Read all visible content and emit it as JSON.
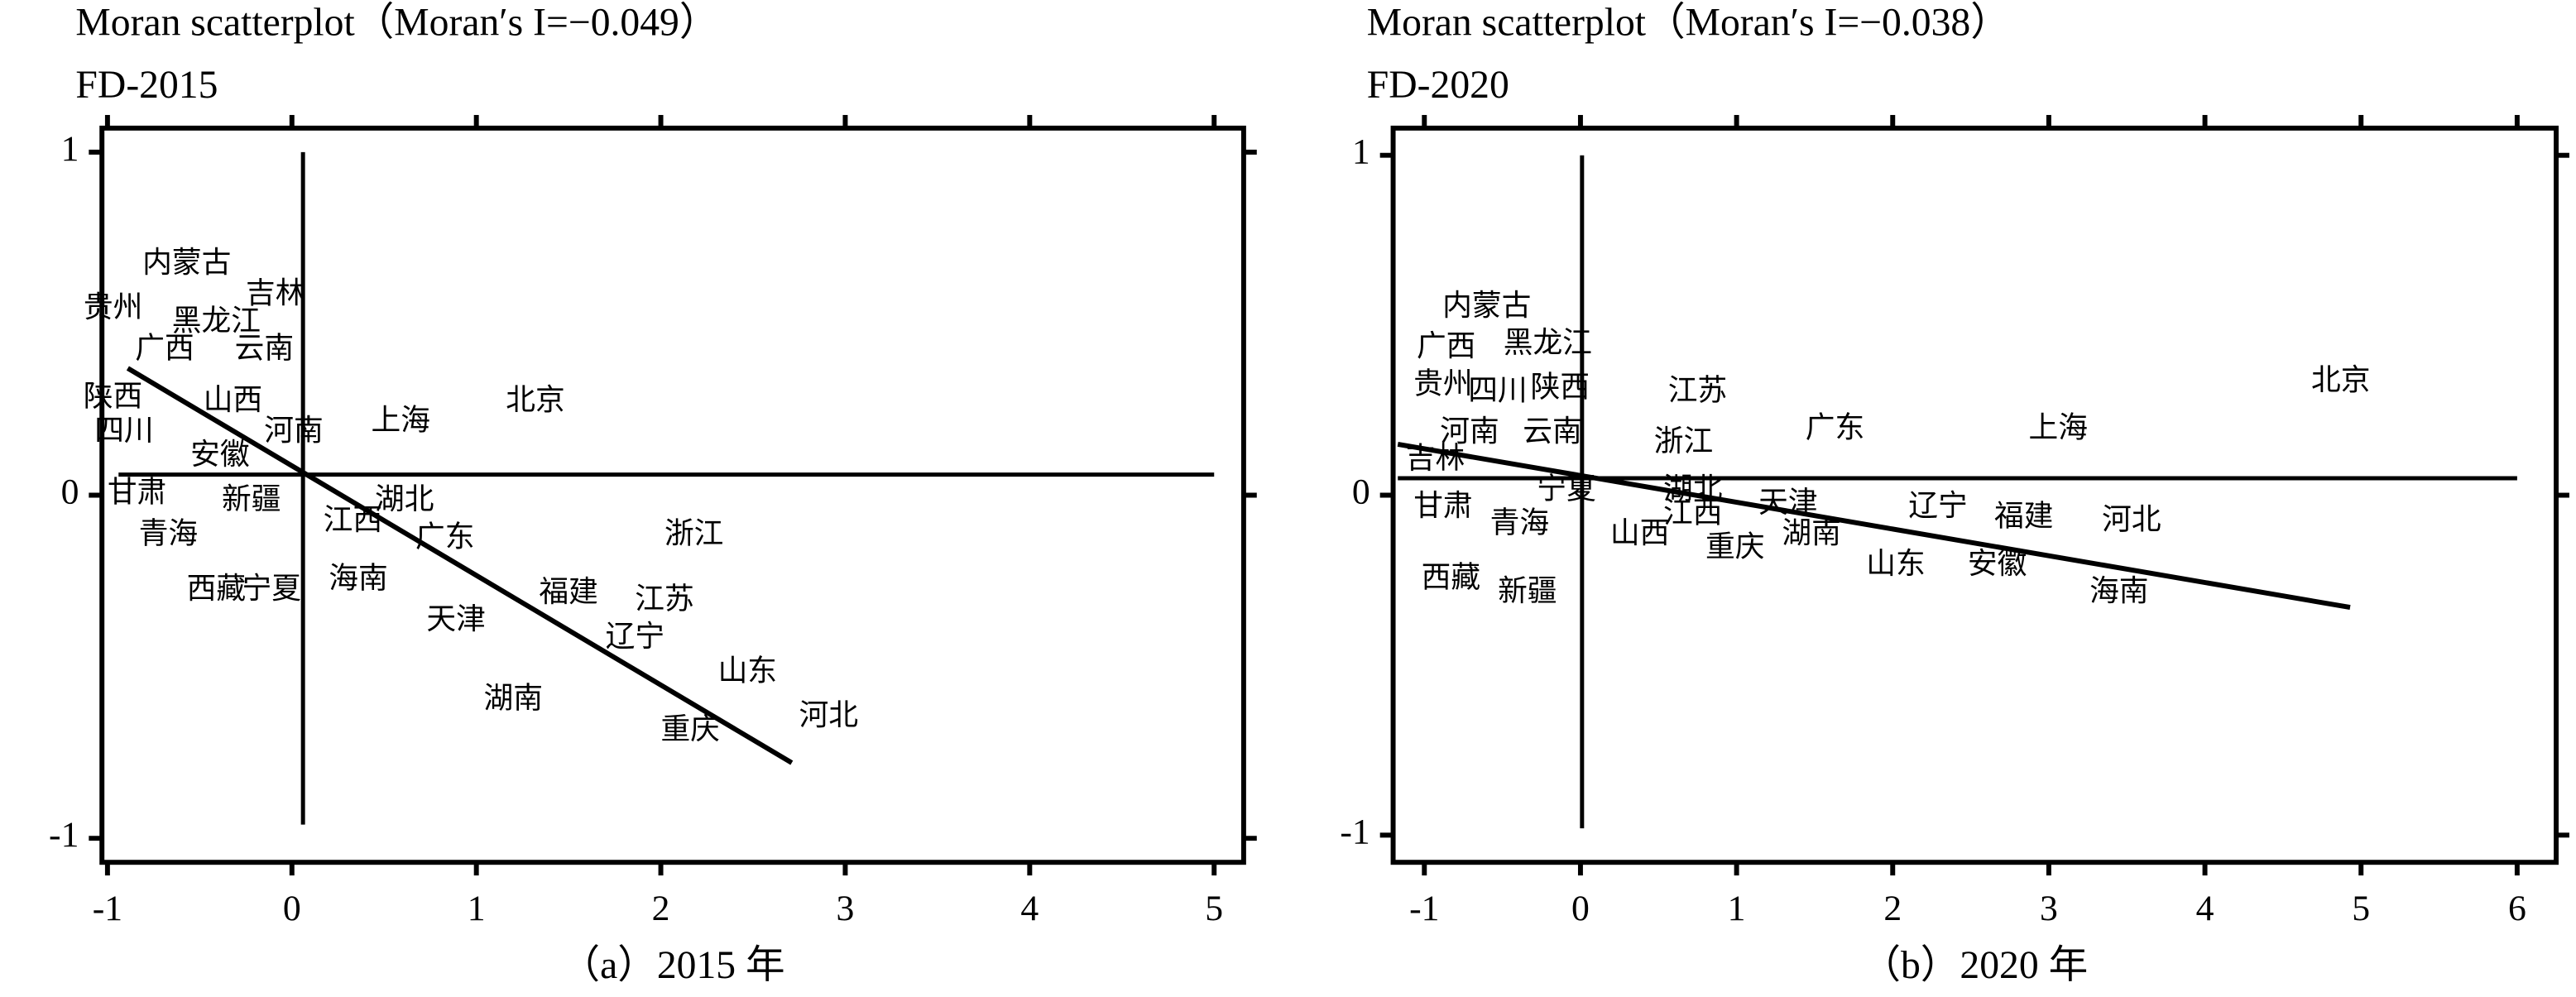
{
  "chart_data": [
    {
      "type": "scatter",
      "title": "Moran scatterplot（Moran′s I=−0.049）",
      "subtitle": "FD-2015",
      "caption": "（a）2015 年",
      "xlim": [
        -1.03,
        5.16
      ],
      "ylim": [
        -1.07,
        1.07
      ],
      "xticks": [
        -1,
        0,
        1,
        2,
        3,
        4,
        5
      ],
      "yticks": [
        -1,
        0,
        1
      ],
      "labels": [
        "内蒙古",
        "吉林",
        "贵州",
        "黑龙江",
        "广西",
        "云南",
        "陕西",
        "山西",
        "四川",
        "河南",
        "上海",
        "北京",
        "安徽",
        "甘肃",
        "新疆",
        "湖北",
        "江西",
        "广东",
        "浙江",
        "青海",
        "西藏",
        "宁夏",
        "海南",
        "福建",
        "江苏",
        "天津",
        "辽宁",
        "山东",
        "湖南",
        "重庆",
        "河北"
      ],
      "x": [
        -0.57,
        -0.09,
        -0.97,
        -0.41,
        -0.69,
        -0.15,
        -0.97,
        -0.32,
        -0.91,
        0.01,
        0.59,
        1.32,
        -0.39,
        -0.84,
        -0.22,
        0.61,
        0.33,
        0.83,
        2.18,
        -0.67,
        -0.41,
        -0.11,
        0.36,
        1.5,
        2.02,
        0.89,
        1.86,
        2.47,
        1.2,
        2.16,
        2.91
      ],
      "y": [
        0.67,
        0.58,
        0.54,
        0.5,
        0.42,
        0.42,
        0.28,
        0.27,
        0.18,
        0.18,
        0.21,
        0.27,
        0.11,
        0.0,
        -0.02,
        -0.02,
        -0.08,
        -0.13,
        -0.12,
        -0.12,
        -0.28,
        -0.28,
        -0.25,
        -0.29,
        -0.31,
        -0.37,
        -0.42,
        -0.52,
        -0.6,
        -0.69,
        -0.65
      ],
      "fit_line": {
        "x": [
          -0.89,
          2.71
        ],
        "y": [
          0.37,
          -0.78
        ]
      },
      "vline": {
        "x": 0.06,
        "y": [
          -0.96,
          1.0
        ]
      },
      "hline": {
        "y": 0.06,
        "x": [
          -0.94,
          5.0
        ]
      }
    },
    {
      "type": "scatter",
      "title": "Moran scatterplot（Moran′s I=−0.038）",
      "subtitle": "FD-2020",
      "caption": "（b）2020 年",
      "xlim": [
        -1.2,
        6.25
      ],
      "ylim": [
        -1.08,
        1.08
      ],
      "xticks": [
        -1,
        0,
        1,
        2,
        3,
        4,
        5,
        6
      ],
      "yticks": [
        -1,
        0,
        1
      ],
      "labels": [
        "内蒙古",
        "广西",
        "黑龙江",
        "贵州",
        "四川",
        "陕西",
        "江苏",
        "北京",
        "河南",
        "云南",
        "浙江",
        "广东",
        "上海",
        "吉林",
        "甘肃",
        "宁夏",
        "湖北",
        "天津",
        "辽宁",
        "福建",
        "河北",
        "青海",
        "江西",
        "山西",
        "湖南",
        "重庆",
        "山东",
        "安徽",
        "西藏",
        "新疆",
        "海南"
      ],
      "x": [
        -0.6,
        -0.86,
        -0.21,
        -0.88,
        -0.53,
        -0.13,
        0.75,
        4.87,
        -0.71,
        -0.18,
        0.66,
        1.63,
        3.06,
        -0.93,
        -0.88,
        -0.09,
        0.72,
        1.33,
        2.29,
        2.84,
        3.53,
        -0.39,
        0.72,
        0.38,
        1.48,
        0.99,
        2.02,
        2.67,
        -0.83,
        -0.34,
        3.45
      ],
      "y": [
        0.55,
        0.43,
        0.44,
        0.32,
        0.3,
        0.31,
        0.3,
        0.33,
        0.18,
        0.18,
        0.15,
        0.19,
        0.19,
        0.1,
        -0.04,
        0.01,
        0.01,
        -0.03,
        -0.04,
        -0.07,
        -0.08,
        -0.09,
        -0.06,
        -0.12,
        -0.12,
        -0.16,
        -0.21,
        -0.21,
        -0.25,
        -0.29,
        -0.29
      ],
      "fit_line": {
        "x": [
          -1.17,
          4.93
        ],
        "y": [
          0.15,
          -0.33
        ]
      },
      "vline": {
        "x": 0.01,
        "y": [
          -0.98,
          1.0
        ]
      },
      "hline": {
        "y": 0.05,
        "x": [
          -1.17,
          6.0
        ]
      }
    }
  ]
}
